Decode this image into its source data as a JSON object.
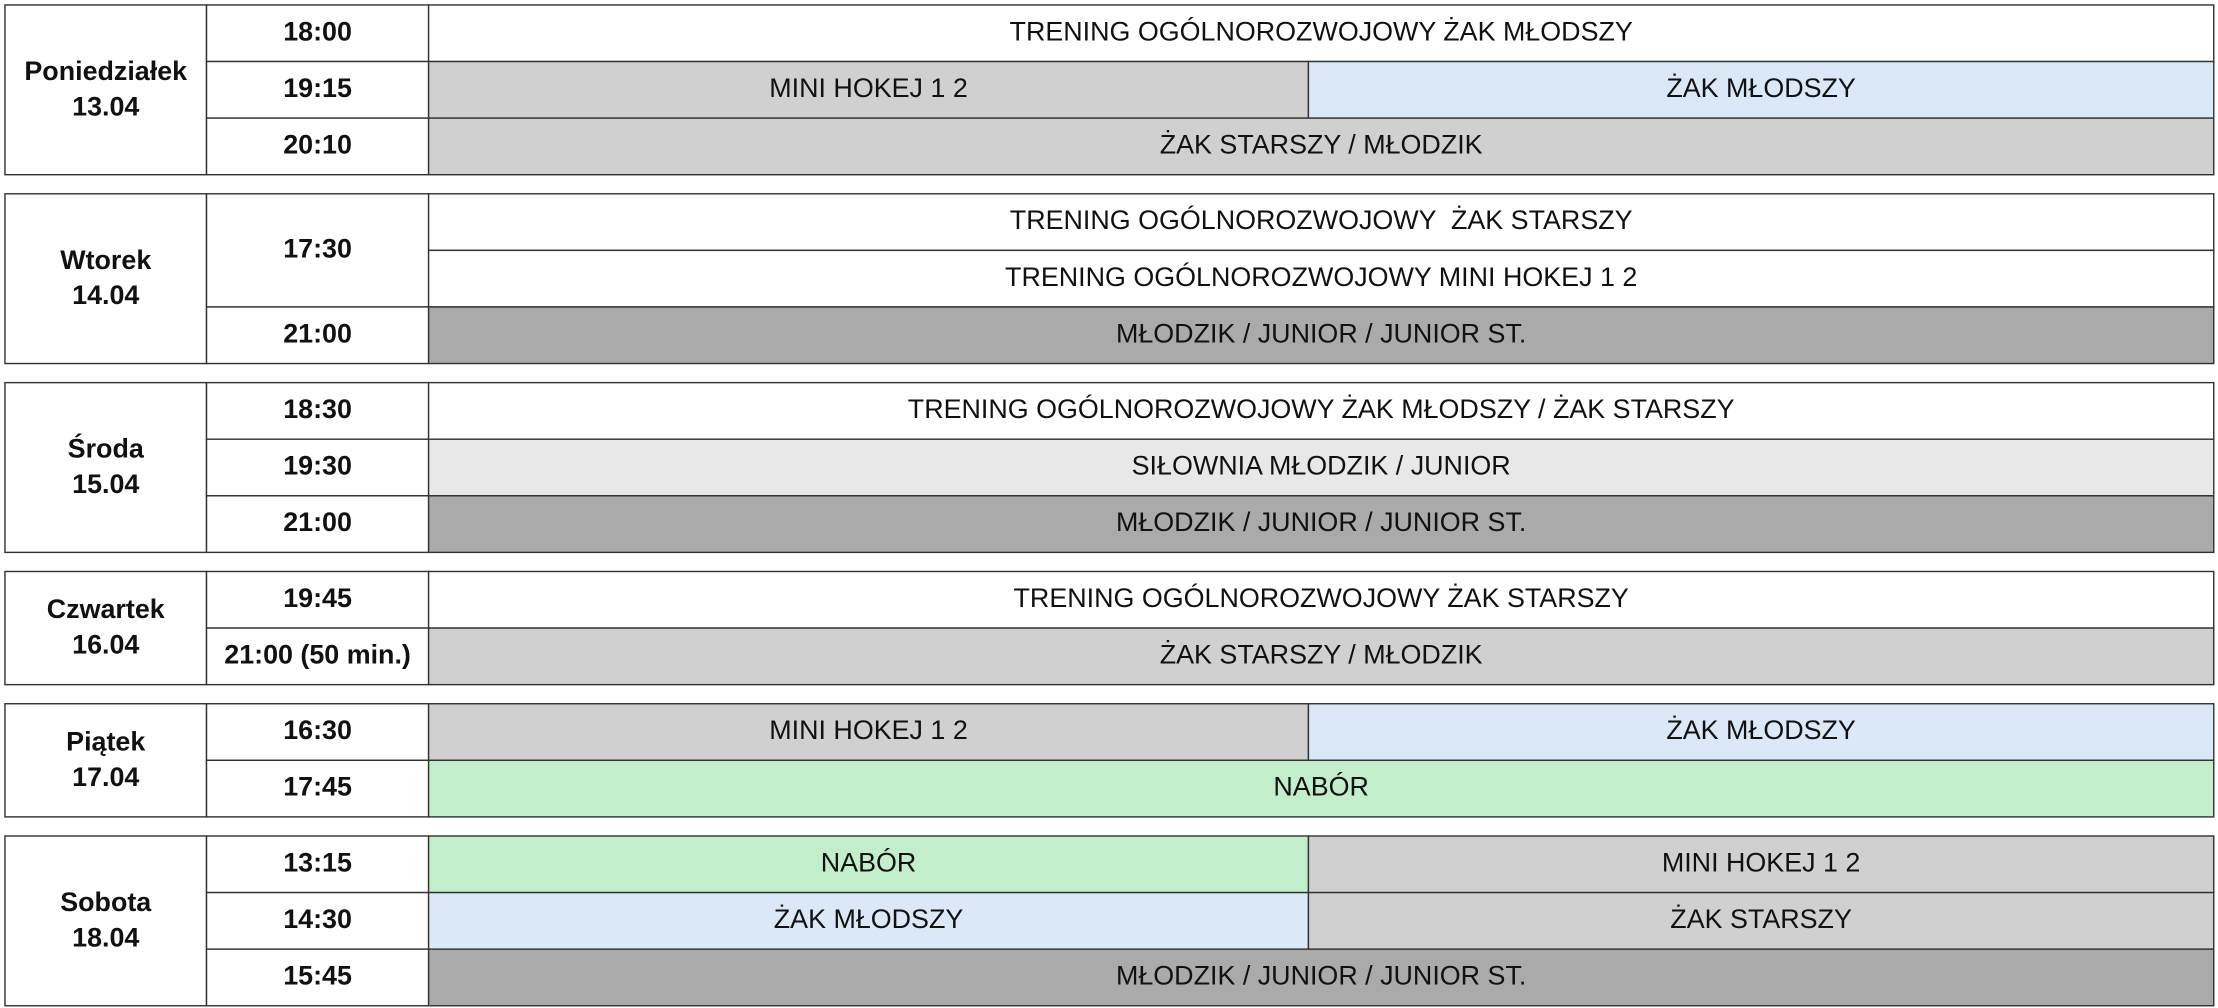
{
  "days": [
    {
      "day": "Poniedziałek",
      "date": "13.04",
      "rows": [
        {
          "time": "18:00",
          "lines": [
            [
              {
                "text": "TRENING OGÓLNOROZWOJOWY ŻAK MŁODSZY",
                "color": "#ffffff"
              }
            ]
          ]
        },
        {
          "time": "19:15",
          "lines": [
            [
              {
                "text": "MINI HOKEJ 1 2",
                "color": "#d0d0d0"
              },
              {
                "text": "ŻAK MŁODSZY",
                "color": "#dae8f8"
              }
            ]
          ]
        },
        {
          "time": "20:10",
          "lines": [
            [
              {
                "text": "ŻAK STARSZY / MŁODZIK",
                "color": "#d0d0d0"
              }
            ]
          ]
        }
      ]
    },
    {
      "day": "Wtorek",
      "date": "14.04",
      "rows": [
        {
          "time": "17:30",
          "lines": [
            [
              {
                "text": "TRENING OGÓLNOROZWOJOWY  ŻAK STARSZY",
                "color": "#ffffff"
              }
            ],
            [
              {
                "text": "TRENING OGÓLNOROZWOJOWY MINI HOKEJ 1 2",
                "color": "#ffffff"
              }
            ]
          ]
        },
        {
          "time": "21:00",
          "lines": [
            [
              {
                "text": "MŁODZIK / JUNIOR / JUNIOR ST.",
                "color": "#aaaaaa"
              }
            ]
          ]
        }
      ]
    },
    {
      "day": "Środa",
      "date": "15.04",
      "rows": [
        {
          "time": "18:30",
          "lines": [
            [
              {
                "text": "TRENING OGÓLNOROZWOJOWY ŻAK MŁODSZY / ŻAK STARSZY",
                "color": "#ffffff"
              }
            ]
          ]
        },
        {
          "time": "19:30",
          "lines": [
            [
              {
                "text": "SIŁOWNIA MŁODZIK / JUNIOR",
                "color": "#e8e8e8"
              }
            ]
          ]
        },
        {
          "time": "21:00",
          "lines": [
            [
              {
                "text": "MŁODZIK / JUNIOR / JUNIOR ST.",
                "color": "#aaaaaa"
              }
            ]
          ]
        }
      ]
    },
    {
      "day": "Czwartek",
      "date": "16.04",
      "rows": [
        {
          "time": "19:45",
          "lines": [
            [
              {
                "text": "TRENING OGÓLNOROZWOJOWY ŻAK STARSZY",
                "color": "#ffffff"
              }
            ]
          ]
        },
        {
          "time": "21:00 (50 min.)",
          "lines": [
            [
              {
                "text": "ŻAK STARSZY / MŁODZIK",
                "color": "#d0d0d0"
              }
            ]
          ]
        }
      ]
    },
    {
      "day": "Piątek",
      "date": "17.04",
      "rows": [
        {
          "time": "16:30",
          "lines": [
            [
              {
                "text": "MINI HOKEJ 1 2",
                "color": "#d0d0d0"
              },
              {
                "text": "ŻAK MŁODSZY",
                "color": "#dae8f8"
              }
            ]
          ]
        },
        {
          "time": "17:45",
          "lines": [
            [
              {
                "text": "NABÓR",
                "color": "#c3eecb"
              }
            ]
          ]
        }
      ]
    },
    {
      "day": "Sobota",
      "date": "18.04",
      "rows": [
        {
          "time": "13:15",
          "lines": [
            [
              {
                "text": "NABÓR",
                "color": "#c3eecb"
              },
              {
                "text": "MINI HOKEJ 1 2",
                "color": "#d0d0d0"
              }
            ]
          ]
        },
        {
          "time": "14:30",
          "lines": [
            [
              {
                "text": "ŻAK MŁODSZY",
                "color": "#dae8f8"
              },
              {
                "text": "ŻAK STARSZY",
                "color": "#d0d0d0"
              }
            ]
          ]
        },
        {
          "time": "15:45",
          "lines": [
            [
              {
                "text": "MŁODZIK / JUNIOR / JUNIOR ST.",
                "color": "#aaaaaa"
              }
            ]
          ]
        }
      ]
    }
  ]
}
